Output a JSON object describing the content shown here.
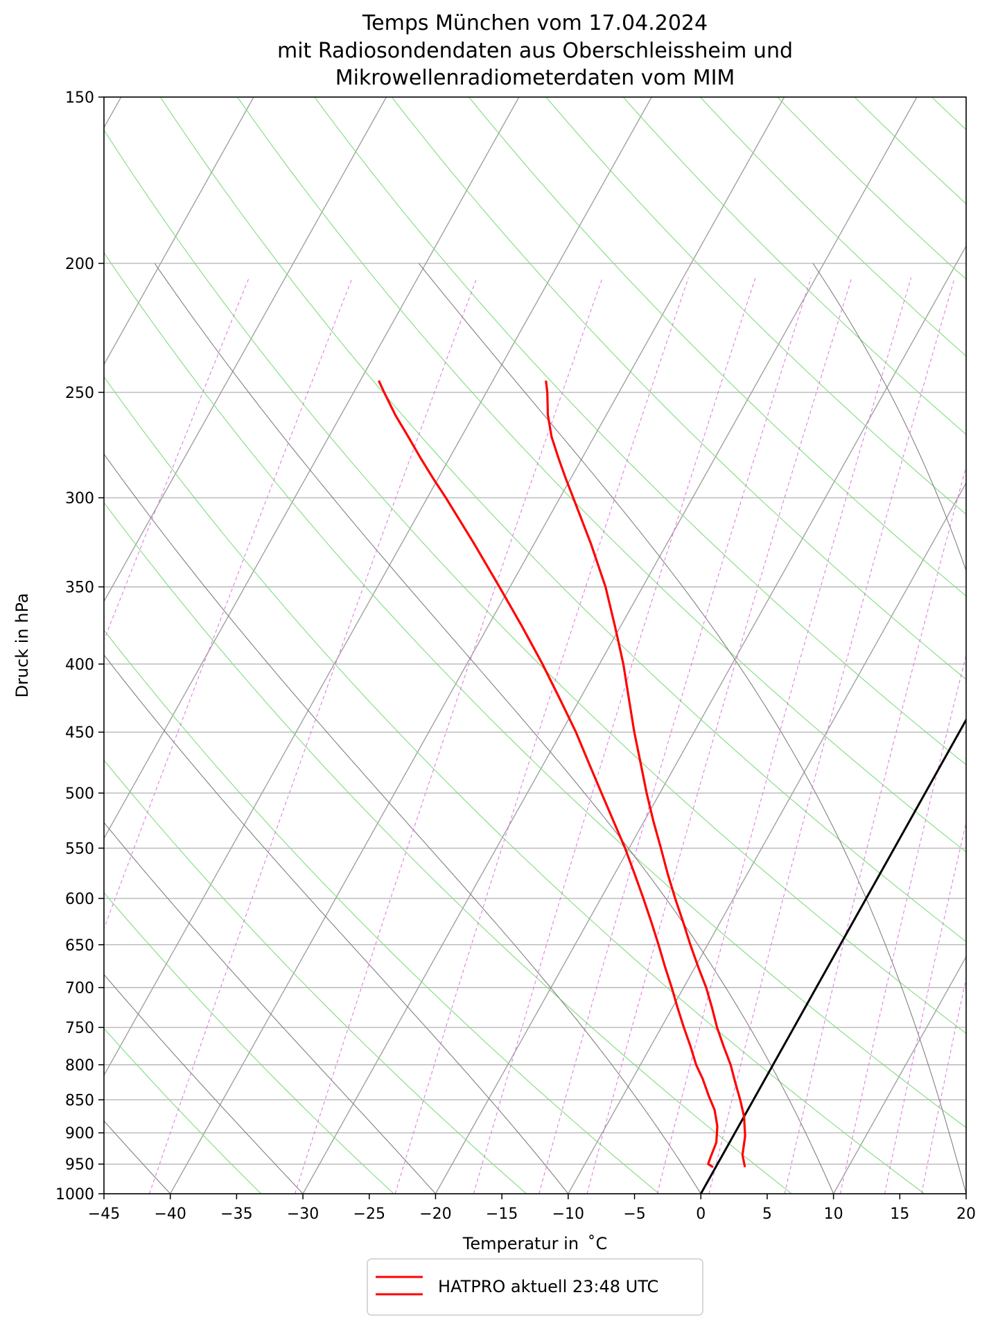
{
  "chart_data": {
    "type": "line",
    "chart_kind": "skew-t log-p diagram",
    "title_lines": [
      "Temps München vom 17.04.2024",
      "mit Radiosondendaten aus Oberschleissheim und",
      "Mikrowellenradiometerdaten vom MIM"
    ],
    "xlabel": "Temperatur in  ˚C",
    "ylabel": "Druck in hPa",
    "xlim": [
      -45,
      20
    ],
    "ylim": [
      1000,
      150
    ],
    "y_scale": "log",
    "x_ticks": [
      -45,
      -40,
      -35,
      -30,
      -25,
      -20,
      -15,
      -10,
      -5,
      0,
      5,
      10,
      15,
      20
    ],
    "x_tick_labels": [
      "−45",
      "−40",
      "−35",
      "−30",
      "−25",
      "−20",
      "−15",
      "−10",
      "−5",
      "0",
      "5",
      "10",
      "15",
      "20"
    ],
    "y_ticks": [
      1000,
      950,
      900,
      850,
      800,
      750,
      700,
      650,
      600,
      550,
      500,
      450,
      400,
      350,
      300,
      250,
      200,
      150
    ],
    "y_tick_labels": [
      "1000",
      "950",
      "900",
      "850",
      "800",
      "750",
      "700",
      "650",
      "600",
      "550",
      "500",
      "450",
      "400",
      "350",
      "300",
      "250",
      "200",
      "150"
    ],
    "grid": true,
    "legend": {
      "position": "below",
      "entries": [
        "HATPRO aktuell 23:48 UTC"
      ]
    },
    "colors": {
      "sounding": "#ff0000",
      "isotherm": "#a0a0a0",
      "dry_adiabat": "#7fdc7f",
      "moist_adiabat": "#808080",
      "mixing_ratio": "#e070e0",
      "isobar": "#b0b0b0",
      "zero_isotherm": "#000000"
    },
    "series": [
      {
        "role": "temperature",
        "points": [
          {
            "p": 955,
            "t": 2.2
          },
          {
            "p": 935,
            "t": 1.5
          },
          {
            "p": 905,
            "t": 0.9
          },
          {
            "p": 875,
            "t": 0.0
          },
          {
            "p": 850,
            "t": -1.0
          },
          {
            "p": 825,
            "t": -2.1
          },
          {
            "p": 800,
            "t": -3.2
          },
          {
            "p": 775,
            "t": -4.5
          },
          {
            "p": 750,
            "t": -5.8
          },
          {
            "p": 725,
            "t": -7.0
          },
          {
            "p": 700,
            "t": -8.3
          },
          {
            "p": 675,
            "t": -9.8
          },
          {
            "p": 650,
            "t": -11.3
          },
          {
            "p": 625,
            "t": -12.8
          },
          {
            "p": 600,
            "t": -14.4
          },
          {
            "p": 575,
            "t": -16.0
          },
          {
            "p": 550,
            "t": -17.6
          },
          {
            "p": 525,
            "t": -19.3
          },
          {
            "p": 500,
            "t": -21.0
          },
          {
            "p": 475,
            "t": -22.7
          },
          {
            "p": 450,
            "t": -24.5
          },
          {
            "p": 425,
            "t": -26.3
          },
          {
            "p": 400,
            "t": -28.2
          },
          {
            "p": 375,
            "t": -30.4
          },
          {
            "p": 350,
            "t": -32.8
          },
          {
            "p": 325,
            "t": -35.7
          },
          {
            "p": 300,
            "t": -39.0
          },
          {
            "p": 290,
            "t": -40.4
          },
          {
            "p": 280,
            "t": -41.8
          },
          {
            "p": 270,
            "t": -43.2
          },
          {
            "p": 260,
            "t": -44.4
          },
          {
            "p": 250,
            "t": -45.4
          },
          {
            "p": 245,
            "t": -46.0
          }
        ]
      },
      {
        "role": "dewpoint",
        "points": [
          {
            "p": 955,
            "t": -0.2
          },
          {
            "p": 950,
            "t": -0.7
          },
          {
            "p": 940,
            "t": -0.8
          },
          {
            "p": 915,
            "t": -1.0
          },
          {
            "p": 890,
            "t": -1.6
          },
          {
            "p": 865,
            "t": -2.5
          },
          {
            "p": 845,
            "t": -3.5
          },
          {
            "p": 820,
            "t": -4.7
          },
          {
            "p": 800,
            "t": -5.8
          },
          {
            "p": 775,
            "t": -7.0
          },
          {
            "p": 750,
            "t": -8.3
          },
          {
            "p": 725,
            "t": -9.6
          },
          {
            "p": 700,
            "t": -10.9
          },
          {
            "p": 675,
            "t": -12.3
          },
          {
            "p": 650,
            "t": -13.7
          },
          {
            "p": 625,
            "t": -15.2
          },
          {
            "p": 600,
            "t": -16.8
          },
          {
            "p": 575,
            "t": -18.5
          },
          {
            "p": 550,
            "t": -20.3
          },
          {
            "p": 525,
            "t": -22.3
          },
          {
            "p": 500,
            "t": -24.4
          },
          {
            "p": 475,
            "t": -26.6
          },
          {
            "p": 450,
            "t": -28.9
          },
          {
            "p": 425,
            "t": -31.5
          },
          {
            "p": 400,
            "t": -34.3
          },
          {
            "p": 375,
            "t": -37.4
          },
          {
            "p": 350,
            "t": -40.8
          },
          {
            "p": 325,
            "t": -44.5
          },
          {
            "p": 300,
            "t": -48.6
          },
          {
            "p": 290,
            "t": -50.4
          },
          {
            "p": 280,
            "t": -52.2
          },
          {
            "p": 270,
            "t": -54.0
          },
          {
            "p": 260,
            "t": -55.9
          },
          {
            "p": 250,
            "t": -57.7
          },
          {
            "p": 245,
            "t": -58.6
          }
        ]
      }
    ]
  }
}
